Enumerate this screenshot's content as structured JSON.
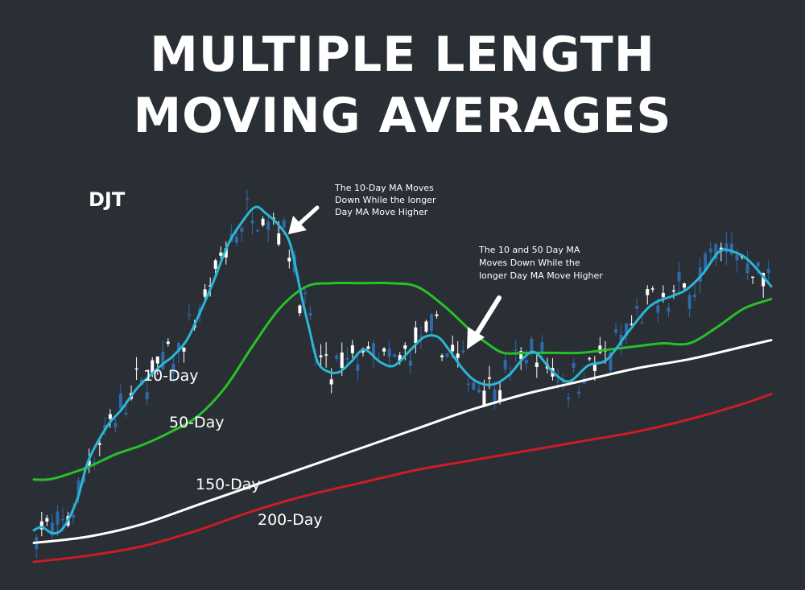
{
  "title_lines": [
    "MULTIPLE LENGTH",
    "MOVING AVERAGES"
  ],
  "chart_data": {
    "type": "line",
    "title": "MULTIPLE LENGTH MOVING AVERAGES",
    "ticker": "DJT",
    "xlabel": "",
    "ylabel": "",
    "grid": false,
    "legend": "none",
    "series": [
      {
        "name": "10-Day",
        "color": "#2bb6d6",
        "x": [
          0,
          3,
          7,
          11,
          16,
          20,
          27,
          32,
          38,
          44,
          48,
          51,
          56,
          61,
          66,
          71,
          76,
          81,
          85,
          90,
          94,
          98,
          101,
          104,
          108,
          112,
          116,
          121,
          127,
          132,
          138,
          143,
          148,
          152,
          157,
          162,
          168,
          174,
          180,
          184,
          190,
          196,
          203,
          210,
          218,
          226,
          234,
          239,
          245,
          251,
          256,
          262,
          270
        ],
        "y": [
          0,
          1,
          -1,
          1,
          10,
          22,
          33,
          38,
          45,
          50,
          53,
          55,
          60,
          69,
          79,
          90,
          97,
          102,
          100,
          96,
          90,
          74,
          63,
          53,
          50,
          50,
          53,
          57,
          53,
          52,
          57,
          61,
          61,
          57,
          51,
          47,
          46,
          49,
          55,
          56,
          50,
          47,
          52,
          54,
          63,
          71,
          74,
          76,
          81,
          88,
          88,
          85,
          77
        ]
      },
      {
        "name": "50-Day",
        "color": "#27c02a",
        "x": [
          0,
          5,
          10,
          20,
          30,
          40,
          50,
          60,
          70,
          80,
          90,
          100,
          110,
          120,
          130,
          140,
          150,
          160,
          166,
          172,
          180,
          190,
          200,
          210,
          220,
          230,
          240,
          250,
          260,
          270
        ],
        "y": [
          16,
          16,
          17,
          20,
          24,
          27,
          31,
          36,
          45,
          58,
          70,
          77,
          78,
          78,
          78,
          77,
          71,
          63,
          59,
          56,
          56,
          56,
          56,
          57,
          58,
          59,
          59,
          64,
          70,
          73
        ]
      },
      {
        "name": "150-Day",
        "color": "#ffffff",
        "x": [
          0,
          20,
          40,
          60,
          80,
          100,
          120,
          140,
          160,
          180,
          200,
          220,
          240,
          260,
          270
        ],
        "y": [
          -4,
          -2,
          2,
          8,
          14,
          20,
          26,
          32,
          38,
          43,
          47,
          51,
          54,
          58,
          60
        ]
      },
      {
        "name": "200-Day",
        "color": "#cc1c25",
        "x": [
          0,
          20,
          40,
          60,
          80,
          100,
          120,
          140,
          160,
          180,
          200,
          220,
          240,
          260,
          270
        ],
        "y": [
          -10,
          -8,
          -5,
          0,
          6,
          11,
          15,
          19,
          22,
          25,
          28,
          31,
          35,
          40,
          43
        ]
      }
    ],
    "ma_labels": [
      "10-Day",
      "50-Day",
      "150-Day",
      "200-Day"
    ],
    "annotations": [
      "The 10-Day MA Moves Down While the longer Day MA Move Higher",
      "The 10 and 50 Day MA Moves Down While the longer Day MA Move Higher"
    ],
    "xlim": [
      0,
      270
    ],
    "ylim": [
      -12,
      112
    ]
  },
  "annotation_lines": [
    [
      "The 10-Day MA Moves",
      "Down While the longer",
      "Day MA Move Higher"
    ],
    [
      "The 10 and 50 Day MA",
      "Moves Down While the",
      "longer Day MA Move Higher"
    ]
  ],
  "colors": {
    "background": "#2a2e35",
    "candles": "#ffffff",
    "candle_down": "#2e6aa8",
    "text": "#ffffff"
  }
}
